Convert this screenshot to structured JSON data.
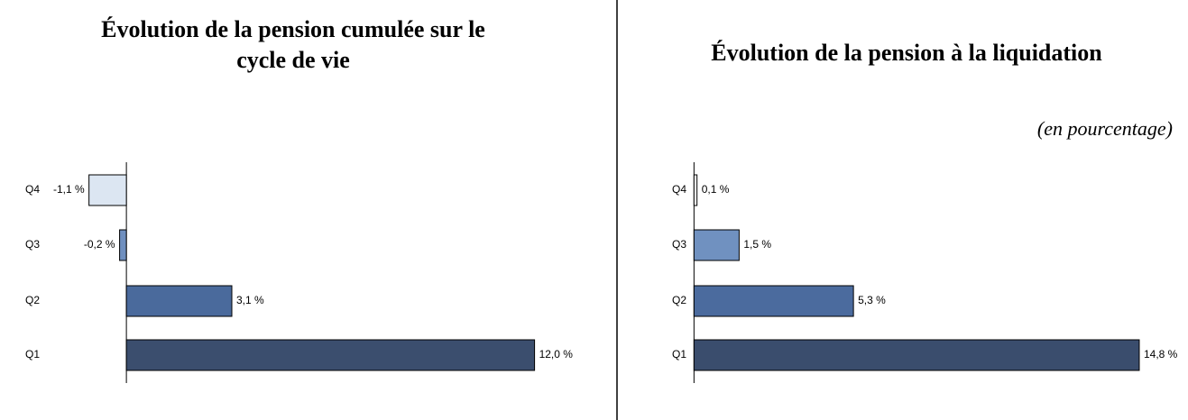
{
  "chart_data": [
    {
      "type": "bar",
      "orientation": "horizontal",
      "title": "Évolution de la pension cumulée sur le cycle de vie",
      "categories": [
        "Q4",
        "Q3",
        "Q2",
        "Q1"
      ],
      "values": [
        -1.1,
        -0.2,
        3.1,
        12.0
      ],
      "value_labels": [
        "-1,1 %",
        "-0,2 %",
        "3,1 %",
        "12,0 %"
      ],
      "colors": [
        "#dce6f2",
        "#6f8fbf",
        "#4a6a9c",
        "#3b4e6e"
      ],
      "xlim": [
        -3,
        14
      ]
    },
    {
      "type": "bar",
      "orientation": "horizontal",
      "title": "Évolution de la pension à la liquidation",
      "subtitle": "(en pourcentage)",
      "categories": [
        "Q4",
        "Q3",
        "Q2",
        "Q1"
      ],
      "values": [
        0.1,
        1.5,
        5.3,
        14.8
      ],
      "value_labels": [
        "0,1 %",
        "1,5 %",
        "5,3 %",
        "14,8 %"
      ],
      "colors": [
        "#ffffff",
        "#7091c0",
        "#4b6b9e",
        "#3a4d6d"
      ],
      "xlim": [
        -1,
        16
      ]
    }
  ]
}
